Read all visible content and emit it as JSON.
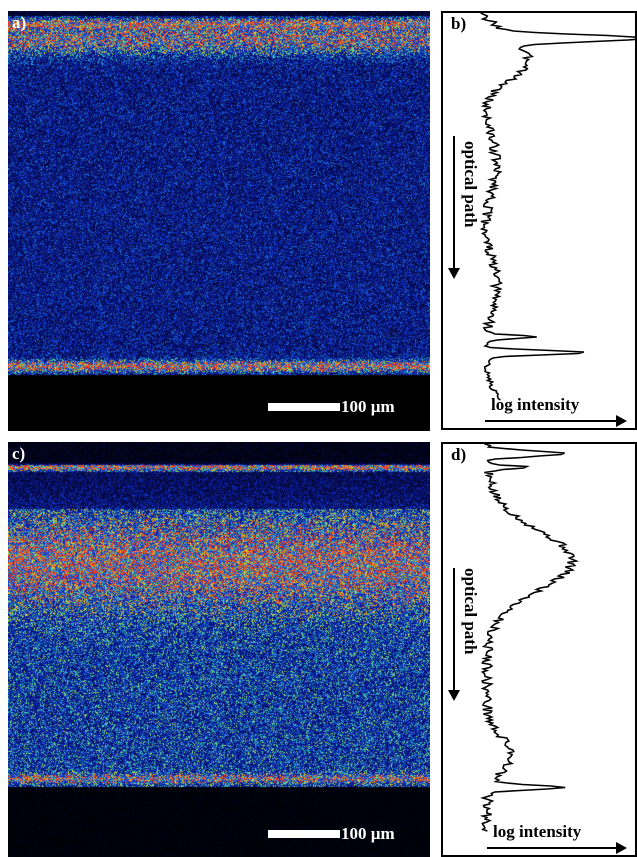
{
  "panels": {
    "a": {
      "label": "a)",
      "scale_label": "100 µm"
    },
    "b": {
      "label": "b)",
      "xlabel": "log intensity",
      "ylabel": "optical path"
    },
    "c": {
      "label": "c)",
      "scale_label": "100 µm"
    },
    "d": {
      "label": "d)",
      "xlabel": "log intensity",
      "ylabel": "optical path"
    }
  },
  "colors": {
    "background": "#000000",
    "low": "#0a1a8c",
    "mid": "#33c8b4",
    "high": "#e8e81e",
    "peak": "#ff3c14"
  }
}
